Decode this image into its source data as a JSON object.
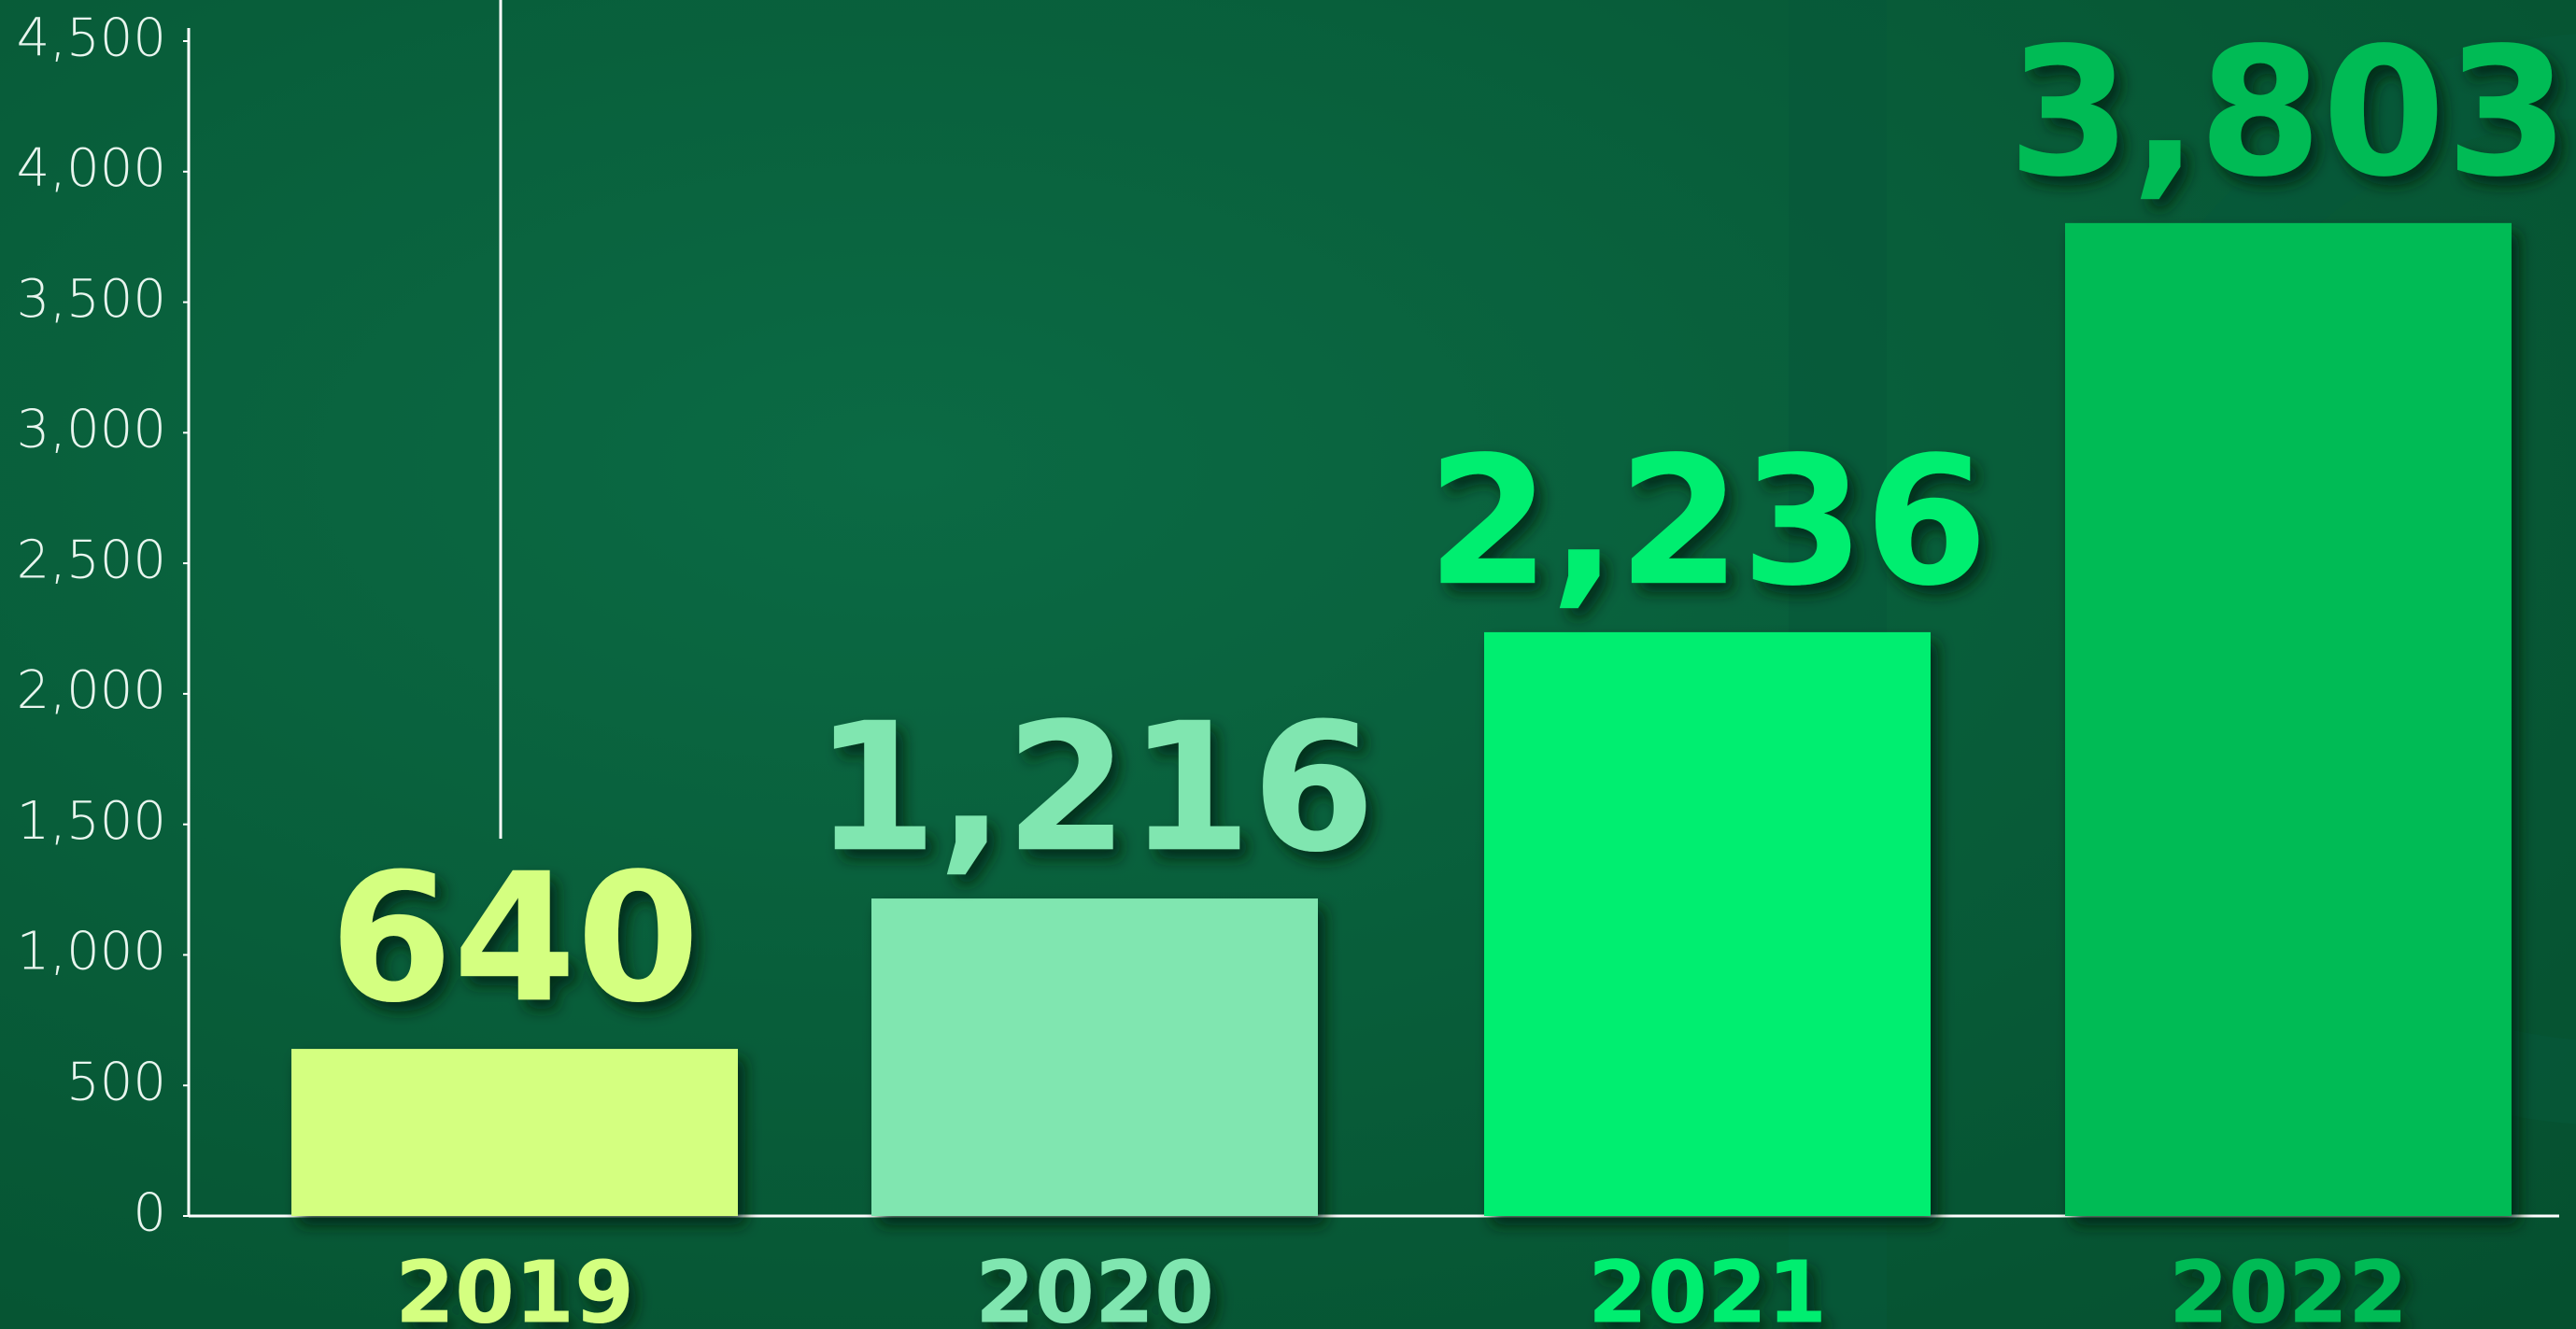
{
  "chart_data": {
    "type": "bar",
    "categories": [
      "2019",
      "2020",
      "2021",
      "2022"
    ],
    "values": [
      640,
      1216,
      2236,
      3803
    ],
    "value_labels": [
      "640",
      "1,216",
      "2,236",
      "3,803"
    ],
    "colors": [
      "#d4ff80",
      "#80e6b0",
      "#00ee70",
      "#00bb55"
    ],
    "ylim": [
      0,
      4500
    ],
    "yticks": [
      0,
      500,
      {
        "value": 1000,
        "label": "1,000"
      },
      {
        "value": 1500,
        "label": "1,500"
      },
      {
        "value": 2000,
        "label": "2,000"
      },
      {
        "value": 2500,
        "label": "2,500"
      },
      {
        "value": 3000,
        "label": "3,000"
      },
      {
        "value": 3500,
        "label": "3,500"
      },
      {
        "value": 4000,
        "label": "4,000"
      },
      {
        "value": 4500,
        "label": "4,500"
      }
    ],
    "grid": false
  }
}
